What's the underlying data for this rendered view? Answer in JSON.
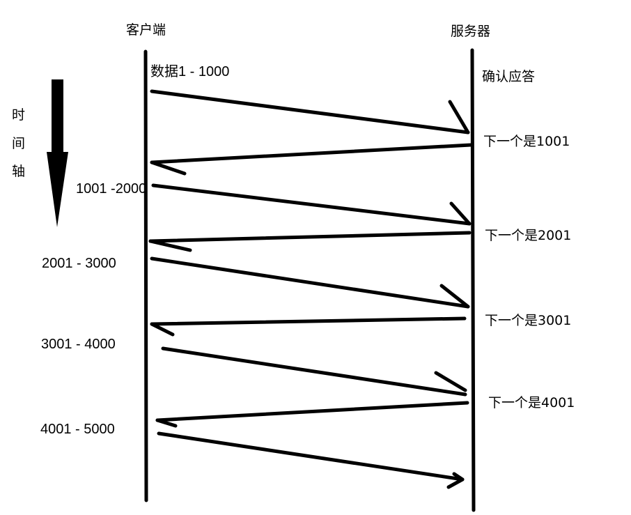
{
  "diagram": {
    "client_label": "客户端",
    "server_label": "服务器",
    "ack_label": "确认应答",
    "time_axis": [
      "时",
      "间",
      "轴"
    ],
    "data_segments": [
      "数据1 - 1000",
      "1001 -2000",
      "2001 - 3000",
      "3001 - 4000",
      "4001 - 5000"
    ],
    "acks": [
      "下一个是1001",
      "下一个是2001",
      "下一个是3001",
      "下一个是4001"
    ],
    "stroke_color": "#000000"
  }
}
